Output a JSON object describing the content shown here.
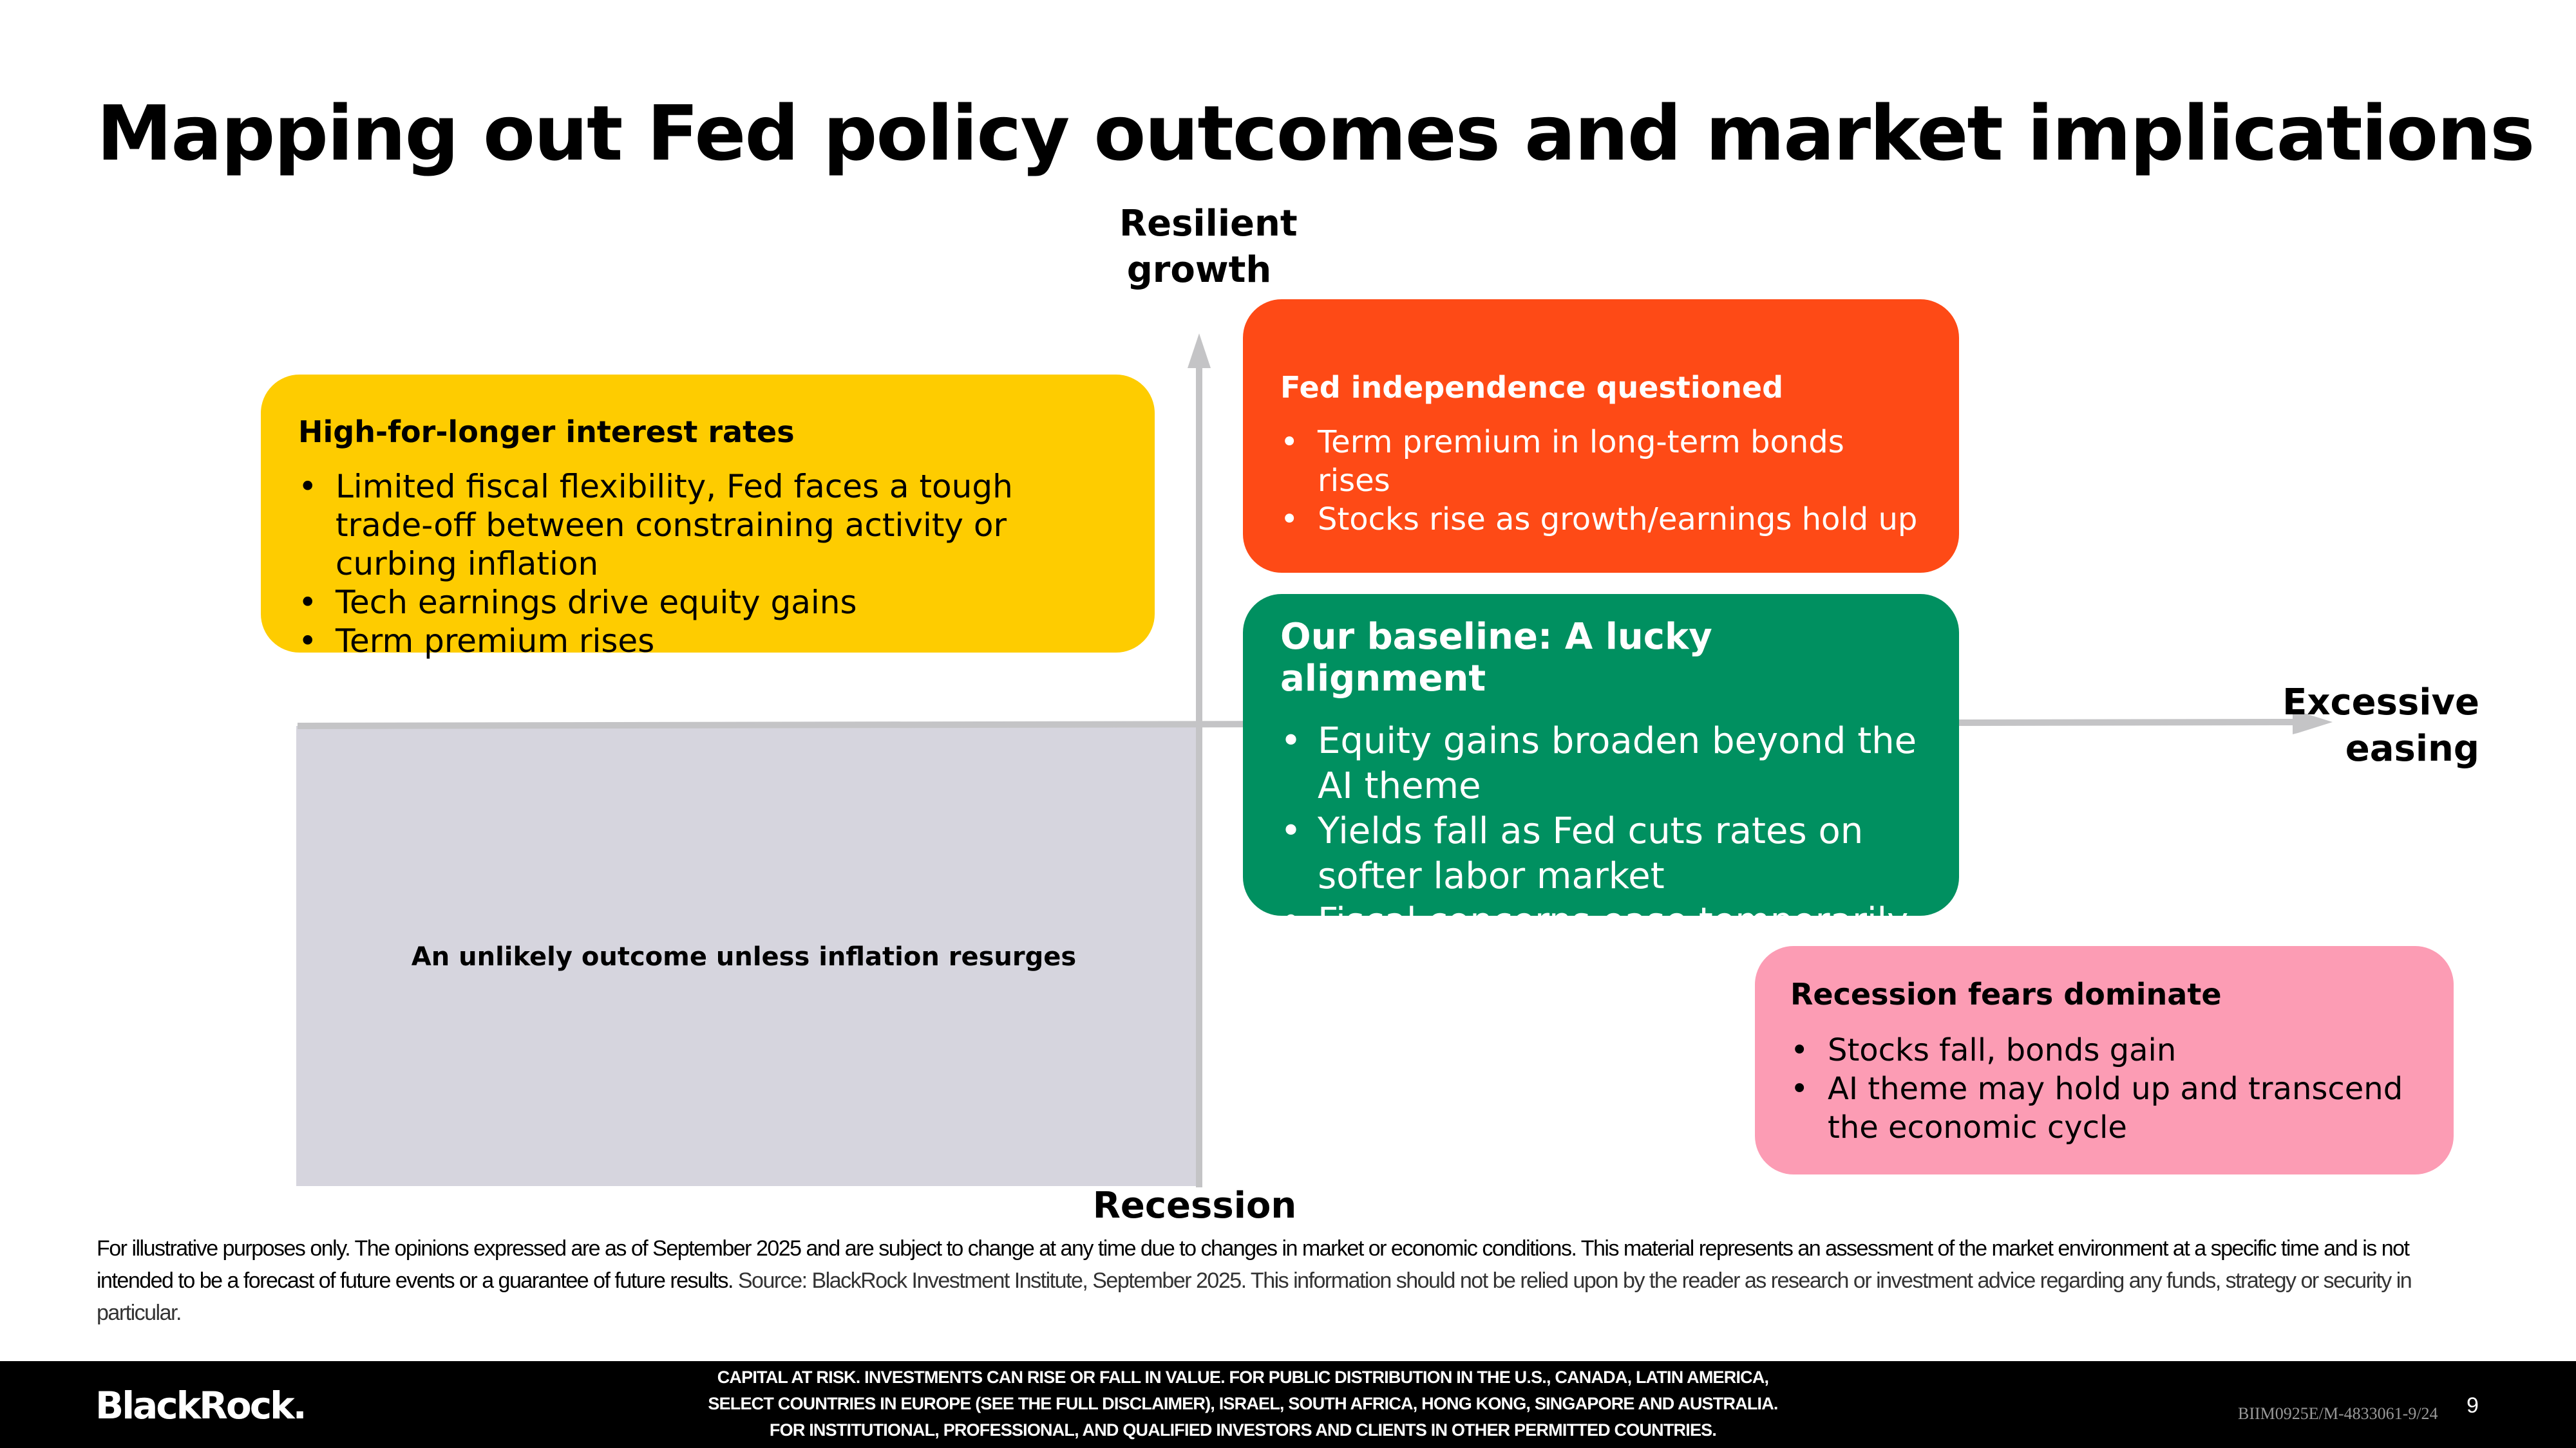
{
  "title": "Mapping out Fed policy outcomes and market implications",
  "axes": {
    "top": [
      "Resilient",
      "growth"
    ],
    "right": [
      "Excessive",
      "easing"
    ],
    "bottom": "Recession"
  },
  "unlikely_text": "An unlikely outcome unless inflation resurges",
  "boxes": {
    "yellow": {
      "title": "High-for-longer interest rates",
      "bullets": [
        "Limited fiscal flexibility, Fed faces a tough trade-off between constraining activity or curbing inflation",
        "Tech earnings drive equity gains",
        "Term premium rises"
      ],
      "color": "#fecc00"
    },
    "orange": {
      "title": "Fed independence questioned",
      "bullets": [
        "Term premium in long-term bonds rises",
        "Stocks rise as growth/earnings hold up"
      ],
      "color": "#fe4a16"
    },
    "green": {
      "title": "Our baseline: A lucky alignment",
      "bullets": [
        "Equity gains broaden beyond the AI theme",
        "Yields fall as Fed cuts rates on softer labor market",
        "Fiscal concerns ease temporarily"
      ],
      "color": "#009060"
    },
    "pink": {
      "title": "Recession fears dominate",
      "bullets": [
        "Stocks fall, bonds gain",
        "AI theme may hold up and transcend the economic cycle"
      ],
      "color": "#fc9cb4"
    }
  },
  "disclaimer": {
    "lead": "For illustrative purposes only. The opinions expressed are as of September 2025 and are subject to change at any time due to changes in market or economic conditions. This material represents an assessment of the market environment at a specific time and is not intended to be a forecast of future events or a guarantee of future results.",
    "source": "Source: BlackRock Investment Institute, September 2025. This information should not be relied upon by the reader as research or investment advice regarding any funds, strategy or security in particular."
  },
  "footer": {
    "logo": "BlackRock.",
    "lines": [
      "CAPITAL AT RISK. INVESTMENTS CAN RISE OR FALL IN VALUE. FOR PUBLIC DISTRIBUTION IN THE U.S., CANADA, LATIN AMERICA,",
      "SELECT COUNTRIES IN EUROPE (SEE THE FULL DISCLAIMER), ISRAEL, SOUTH AFRICA, HONG KONG, SINGAPORE AND AUSTRALIA.",
      "FOR INSTITUTIONAL, PROFESSIONAL, AND QUALIFIED INVESTORS AND CLIENTS IN OTHER PERMITTED COUNTRIES."
    ],
    "code": "BIIM0925E/M-4833061-9/24",
    "page": "9"
  }
}
